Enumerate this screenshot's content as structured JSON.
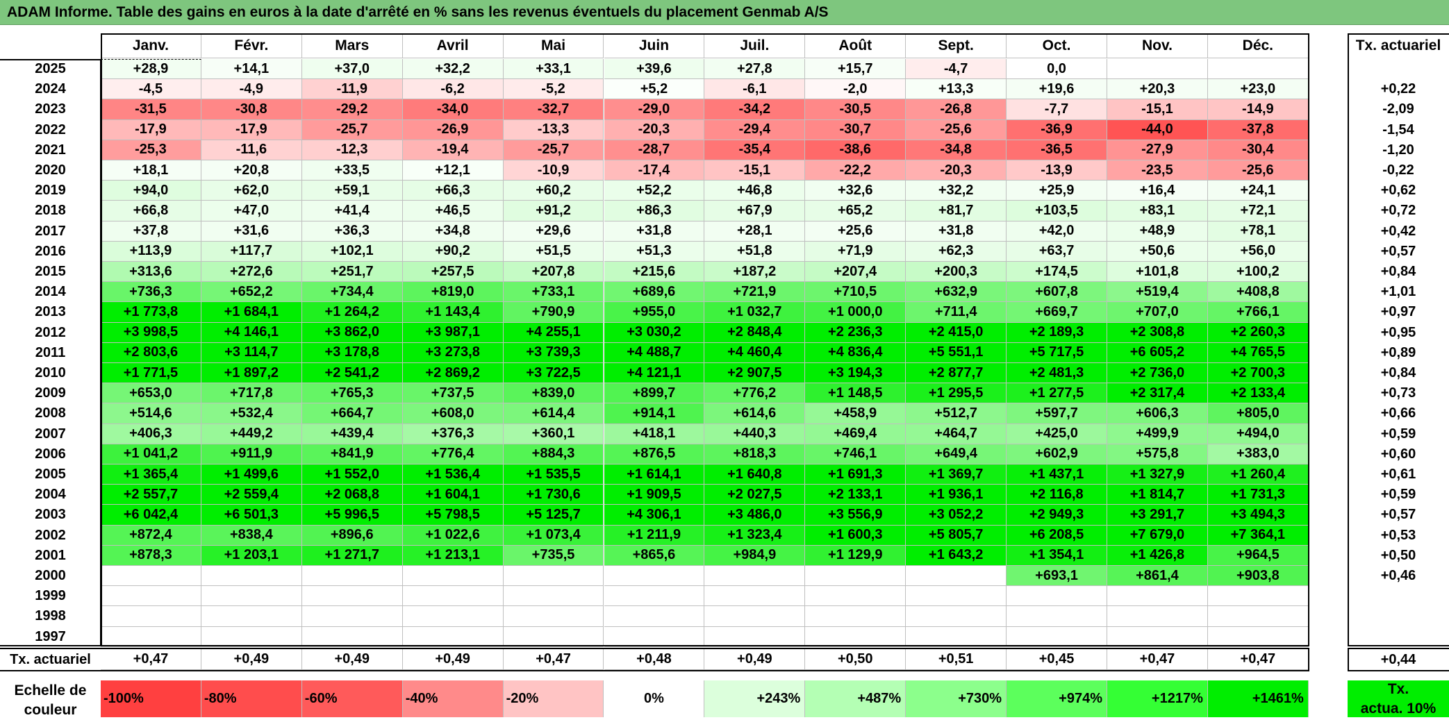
{
  "title": "ADAM Informe. Table des gains en euros à la date d'arrêté en % sans les revenus éventuels du placement Genmab A/S",
  "months": [
    "Janv.",
    "Févr.",
    "Mars",
    "Avril",
    "Mai",
    "Juin",
    "Juil.",
    "Août",
    "Sept.",
    "Oct.",
    "Nov.",
    "Déc."
  ],
  "rate_header": "Tx. actuariel",
  "rows": [
    {
      "year": "2025",
      "values": [
        "+28,9",
        "+14,1",
        "+37,0",
        "+32,2",
        "+33,1",
        "+39,6",
        "+27,8",
        "+15,7",
        "-4,7",
        "0,0",
        "",
        ""
      ],
      "rate": ""
    },
    {
      "year": "2024",
      "values": [
        "-4,5",
        "-4,9",
        "-11,9",
        "-6,2",
        "-5,2",
        "+5,2",
        "-6,1",
        "-2,0",
        "+13,3",
        "+19,6",
        "+20,3",
        "+23,0"
      ],
      "rate": "+0,22"
    },
    {
      "year": "2023",
      "values": [
        "-31,5",
        "-30,8",
        "-29,2",
        "-34,0",
        "-32,7",
        "-29,0",
        "-34,2",
        "-30,5",
        "-26,8",
        "-7,7",
        "-15,1",
        "-14,9"
      ],
      "rate": "-2,09"
    },
    {
      "year": "2022",
      "values": [
        "-17,9",
        "-17,9",
        "-25,7",
        "-26,9",
        "-13,3",
        "-20,3",
        "-29,4",
        "-30,7",
        "-25,6",
        "-36,9",
        "-44,0",
        "-37,8"
      ],
      "rate": "-1,54"
    },
    {
      "year": "2021",
      "values": [
        "-25,3",
        "-11,6",
        "-12,3",
        "-19,4",
        "-25,7",
        "-28,7",
        "-35,4",
        "-38,6",
        "-34,8",
        "-36,5",
        "-27,9",
        "-30,4"
      ],
      "rate": "-1,20"
    },
    {
      "year": "2020",
      "values": [
        "+18,1",
        "+20,8",
        "+33,5",
        "+12,1",
        "-10,9",
        "-17,4",
        "-15,1",
        "-22,2",
        "-20,3",
        "-13,9",
        "-23,5",
        "-25,6"
      ],
      "rate": "-0,22"
    },
    {
      "year": "2019",
      "values": [
        "+94,0",
        "+62,0",
        "+59,1",
        "+66,3",
        "+60,2",
        "+52,2",
        "+46,8",
        "+32,6",
        "+32,2",
        "+25,9",
        "+16,4",
        "+24,1"
      ],
      "rate": "+0,62"
    },
    {
      "year": "2018",
      "values": [
        "+66,8",
        "+47,0",
        "+41,4",
        "+46,5",
        "+91,2",
        "+86,3",
        "+67,9",
        "+65,2",
        "+81,7",
        "+103,5",
        "+83,1",
        "+72,1"
      ],
      "rate": "+0,72"
    },
    {
      "year": "2017",
      "values": [
        "+37,8",
        "+31,6",
        "+36,3",
        "+34,8",
        "+29,6",
        "+31,8",
        "+28,1",
        "+25,6",
        "+31,8",
        "+42,0",
        "+48,9",
        "+78,1"
      ],
      "rate": "+0,42"
    },
    {
      "year": "2016",
      "values": [
        "+113,9",
        "+117,7",
        "+102,1",
        "+90,2",
        "+51,5",
        "+51,3",
        "+51,8",
        "+71,9",
        "+62,3",
        "+63,7",
        "+50,6",
        "+56,0"
      ],
      "rate": "+0,57"
    },
    {
      "year": "2015",
      "values": [
        "+313,6",
        "+272,6",
        "+251,7",
        "+257,5",
        "+207,8",
        "+215,6",
        "+187,2",
        "+207,4",
        "+200,3",
        "+174,5",
        "+101,8",
        "+100,2"
      ],
      "rate": "+0,84"
    },
    {
      "year": "2014",
      "values": [
        "+736,3",
        "+652,2",
        "+734,4",
        "+819,0",
        "+733,1",
        "+689,6",
        "+721,9",
        "+710,5",
        "+632,9",
        "+607,8",
        "+519,4",
        "+408,8"
      ],
      "rate": "+1,01"
    },
    {
      "year": "2013",
      "values": [
        "+1 773,8",
        "+1 684,1",
        "+1 264,2",
        "+1 143,4",
        "+790,9",
        "+955,0",
        "+1 032,7",
        "+1 000,0",
        "+711,4",
        "+669,7",
        "+707,0",
        "+766,1"
      ],
      "rate": "+0,97"
    },
    {
      "year": "2012",
      "values": [
        "+3 998,5",
        "+4 146,1",
        "+3 862,0",
        "+3 987,1",
        "+4 255,1",
        "+3 030,2",
        "+2 848,4",
        "+2 236,3",
        "+2 415,0",
        "+2 189,3",
        "+2 308,8",
        "+2 260,3"
      ],
      "rate": "+0,95"
    },
    {
      "year": "2011",
      "values": [
        "+2 803,6",
        "+3 114,7",
        "+3 178,8",
        "+3 273,8",
        "+3 739,3",
        "+4 488,7",
        "+4 460,4",
        "+4 836,4",
        "+5 551,1",
        "+5 717,5",
        "+6 605,2",
        "+4 765,5"
      ],
      "rate": "+0,89"
    },
    {
      "year": "2010",
      "values": [
        "+1 771,5",
        "+1 897,2",
        "+2 541,2",
        "+2 869,2",
        "+3 722,5",
        "+4 121,1",
        "+2 907,5",
        "+3 194,3",
        "+2 877,7",
        "+2 481,3",
        "+2 736,0",
        "+2 700,3"
      ],
      "rate": "+0,84"
    },
    {
      "year": "2009",
      "values": [
        "+653,0",
        "+717,8",
        "+765,3",
        "+737,5",
        "+839,0",
        "+899,7",
        "+776,2",
        "+1 148,5",
        "+1 295,5",
        "+1 277,5",
        "+2 317,4",
        "+2 133,4"
      ],
      "rate": "+0,73"
    },
    {
      "year": "2008",
      "values": [
        "+514,6",
        "+532,4",
        "+664,7",
        "+608,0",
        "+614,4",
        "+914,1",
        "+614,6",
        "+458,9",
        "+512,7",
        "+597,7",
        "+606,3",
        "+805,0"
      ],
      "rate": "+0,66"
    },
    {
      "year": "2007",
      "values": [
        "+406,3",
        "+449,2",
        "+439,4",
        "+376,3",
        "+360,1",
        "+418,1",
        "+440,3",
        "+469,4",
        "+464,7",
        "+425,0",
        "+499,9",
        "+494,0"
      ],
      "rate": "+0,59"
    },
    {
      "year": "2006",
      "values": [
        "+1 041,2",
        "+911,9",
        "+841,9",
        "+776,4",
        "+884,3",
        "+876,5",
        "+818,3",
        "+746,1",
        "+649,4",
        "+602,9",
        "+575,8",
        "+383,0"
      ],
      "rate": "+0,60"
    },
    {
      "year": "2005",
      "values": [
        "+1 365,4",
        "+1 499,6",
        "+1 552,0",
        "+1 536,4",
        "+1 535,5",
        "+1 614,1",
        "+1 640,8",
        "+1 691,3",
        "+1 369,7",
        "+1 437,1",
        "+1 327,9",
        "+1 260,4"
      ],
      "rate": "+0,61"
    },
    {
      "year": "2004",
      "values": [
        "+2 557,7",
        "+2 559,4",
        "+2 068,8",
        "+1 604,1",
        "+1 730,6",
        "+1 909,5",
        "+2 027,5",
        "+2 133,1",
        "+1 936,1",
        "+2 116,8",
        "+1 814,7",
        "+1 731,3"
      ],
      "rate": "+0,59"
    },
    {
      "year": "2003",
      "values": [
        "+6 042,4",
        "+6 501,3",
        "+5 996,5",
        "+5 798,5",
        "+5 125,7",
        "+4 306,1",
        "+3 486,0",
        "+3 556,9",
        "+3 052,2",
        "+2 949,3",
        "+3 291,7",
        "+3 494,3"
      ],
      "rate": "+0,57"
    },
    {
      "year": "2002",
      "values": [
        "+872,4",
        "+838,4",
        "+896,6",
        "+1 022,6",
        "+1 073,4",
        "+1 211,9",
        "+1 323,4",
        "+1 600,3",
        "+5 805,7",
        "+6 208,5",
        "+7 679,0",
        "+7 364,1"
      ],
      "rate": "+0,53"
    },
    {
      "year": "2001",
      "values": [
        "+878,3",
        "+1 203,1",
        "+1 271,7",
        "+1 213,1",
        "+735,5",
        "+865,6",
        "+984,9",
        "+1 129,9",
        "+1 643,2",
        "+1 354,1",
        "+1 426,8",
        "+964,5"
      ],
      "rate": "+0,50"
    },
    {
      "year": "2000",
      "values": [
        "",
        "",
        "",
        "",
        "",
        "",
        "",
        "",
        "",
        "+693,1",
        "+861,4",
        "+903,8"
      ],
      "rate": "+0,46"
    },
    {
      "year": "1999",
      "values": [
        "",
        "",
        "",
        "",
        "",
        "",
        "",
        "",
        "",
        "",
        "",
        ""
      ],
      "rate": ""
    },
    {
      "year": "1998",
      "values": [
        "",
        "",
        "",
        "",
        "",
        "",
        "",
        "",
        "",
        "",
        "",
        ""
      ],
      "rate": ""
    },
    {
      "year": "1997",
      "values": [
        "",
        "",
        "",
        "",
        "",
        "",
        "",
        "",
        "",
        "",
        "",
        ""
      ],
      "rate": ""
    }
  ],
  "footer": {
    "label": "Tx. actuariel",
    "values": [
      "+0,47",
      "+0,49",
      "+0,49",
      "+0,49",
      "+0,47",
      "+0,48",
      "+0,49",
      "+0,50",
      "+0,51",
      "+0,45",
      "+0,47",
      "+0,47"
    ],
    "total": "+0,44"
  },
  "legend": {
    "label_line1": "Echelle de",
    "label_line2": "couleur",
    "steps": [
      {
        "label": "-100%",
        "color": "#ff4040"
      },
      {
        "label": "-80%",
        "color": "#ff4d4d"
      },
      {
        "label": "-60%",
        "color": "#ff5a5a"
      },
      {
        "label": "-40%",
        "color": "#ff8a8a"
      },
      {
        "label": "-20%",
        "color": "#ffc4c4"
      },
      {
        "label": "0%",
        "color": "#ffffff"
      },
      {
        "label": "+243%",
        "color": "#dcffdc"
      },
      {
        "label": "+487%",
        "color": "#b4ffb4"
      },
      {
        "label": "+730%",
        "color": "#8cff8c"
      },
      {
        "label": "+974%",
        "color": "#5cff5c"
      },
      {
        "label": "+1217%",
        "color": "#34ff34"
      },
      {
        "label": "+1461%",
        "color": "#00ee00"
      }
    ],
    "rate_line1": "Tx.",
    "rate_line2": "actua. 10%",
    "rate_color": "#00ee00"
  }
}
